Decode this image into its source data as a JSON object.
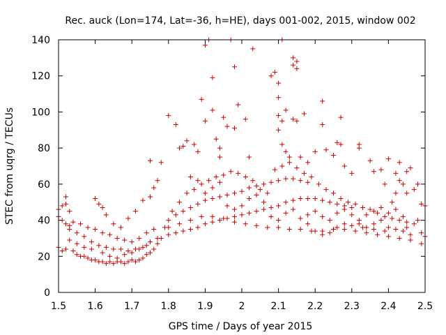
{
  "chart_data": {
    "type": "scatter",
    "title": "Rec. auck (Lon=174, Lat=-36, h=HE), days 001-002, 2015, window 002",
    "xlabel": "GPS time / Days of year 2015",
    "ylabel": "STEC from uqrg / TECUs",
    "xlim": [
      1.5,
      2.5
    ],
    "ylim": [
      0,
      140
    ],
    "xticks": [
      "1.5",
      "1.6",
      "1.7",
      "1.8",
      "1.9",
      "2",
      "2.1",
      "2.2",
      "2.3",
      "2.4",
      "2.5"
    ],
    "yticks": [
      "0",
      "20",
      "40",
      "60",
      "80",
      "100",
      "120",
      "140"
    ],
    "marker": "+",
    "marker_color": "#cc0000",
    "grid": false,
    "series": [
      {
        "name": "STEC",
        "points": [
          [
            1.5,
            46
          ],
          [
            1.51,
            48
          ],
          [
            1.52,
            49
          ],
          [
            1.52,
            53
          ],
          [
            1.53,
            45
          ],
          [
            1.5,
            25
          ],
          [
            1.51,
            23
          ],
          [
            1.52,
            24
          ],
          [
            1.53,
            29
          ],
          [
            1.53,
            37
          ],
          [
            1.54,
            23
          ],
          [
            1.55,
            21
          ],
          [
            1.56,
            20
          ],
          [
            1.57,
            20
          ],
          [
            1.58,
            19
          ],
          [
            1.59,
            18
          ],
          [
            1.6,
            18
          ],
          [
            1.61,
            17
          ],
          [
            1.62,
            17
          ],
          [
            1.63,
            16
          ],
          [
            1.64,
            17
          ],
          [
            1.65,
            16
          ],
          [
            1.66,
            17
          ],
          [
            1.67,
            17
          ],
          [
            1.68,
            16
          ],
          [
            1.69,
            17
          ],
          [
            1.7,
            18
          ],
          [
            1.71,
            17
          ],
          [
            1.72,
            18
          ],
          [
            1.73,
            19
          ],
          [
            1.74,
            21
          ],
          [
            1.75,
            22
          ],
          [
            1.76,
            24
          ],
          [
            1.77,
            27
          ],
          [
            1.78,
            30
          ],
          [
            1.53,
            35
          ],
          [
            1.55,
            33
          ],
          [
            1.57,
            31
          ],
          [
            1.59,
            28
          ],
          [
            1.61,
            26
          ],
          [
            1.63,
            25
          ],
          [
            1.65,
            24
          ],
          [
            1.67,
            24
          ],
          [
            1.69,
            23
          ],
          [
            1.71,
            24
          ],
          [
            1.73,
            25
          ],
          [
            1.75,
            28
          ],
          [
            1.77,
            30
          ],
          [
            1.54,
            39
          ],
          [
            1.56,
            38
          ],
          [
            1.58,
            36
          ],
          [
            1.6,
            35
          ],
          [
            1.62,
            33
          ],
          [
            1.64,
            32
          ],
          [
            1.66,
            30
          ],
          [
            1.68,
            29
          ],
          [
            1.7,
            28
          ],
          [
            1.72,
            30
          ],
          [
            1.74,
            33
          ],
          [
            1.76,
            35
          ],
          [
            1.6,
            52
          ],
          [
            1.61,
            49
          ],
          [
            1.62,
            47
          ],
          [
            1.63,
            43
          ],
          [
            1.65,
            38
          ],
          [
            1.67,
            36
          ],
          [
            1.69,
            41
          ],
          [
            1.71,
            45
          ],
          [
            1.73,
            51
          ],
          [
            1.75,
            53
          ],
          [
            1.76,
            58
          ],
          [
            1.77,
            62
          ],
          [
            1.75,
            73
          ],
          [
            1.78,
            72
          ],
          [
            1.8,
            32
          ],
          [
            1.82,
            33
          ],
          [
            1.84,
            34
          ],
          [
            1.86,
            35
          ],
          [
            1.88,
            36
          ],
          [
            1.9,
            38
          ],
          [
            1.92,
            39
          ],
          [
            1.94,
            40
          ],
          [
            1.96,
            41
          ],
          [
            1.98,
            42
          ],
          [
            2.0,
            43
          ],
          [
            2.02,
            44
          ],
          [
            2.04,
            45
          ],
          [
            2.06,
            46
          ],
          [
            2.08,
            47
          ],
          [
            2.1,
            48
          ],
          [
            2.12,
            50
          ],
          [
            2.14,
            51
          ],
          [
            2.16,
            52
          ],
          [
            2.18,
            52
          ],
          [
            2.2,
            52
          ],
          [
            2.22,
            51
          ],
          [
            2.24,
            50
          ],
          [
            2.26,
            49
          ],
          [
            2.28,
            48
          ],
          [
            2.3,
            47
          ],
          [
            1.8,
            40
          ],
          [
            1.82,
            43
          ],
          [
            1.84,
            45
          ],
          [
            1.86,
            47
          ],
          [
            1.88,
            49
          ],
          [
            1.9,
            51
          ],
          [
            1.92,
            52
          ],
          [
            1.94,
            53
          ],
          [
            1.96,
            54
          ],
          [
            1.98,
            55
          ],
          [
            2.0,
            56
          ],
          [
            2.02,
            58
          ],
          [
            2.04,
            59
          ],
          [
            2.06,
            60
          ],
          [
            2.08,
            61
          ],
          [
            2.1,
            62
          ],
          [
            2.12,
            63
          ],
          [
            2.14,
            63
          ],
          [
            2.16,
            62
          ],
          [
            2.18,
            61
          ],
          [
            1.8,
            36
          ],
          [
            1.83,
            38
          ],
          [
            1.86,
            40
          ],
          [
            1.89,
            42
          ],
          [
            1.92,
            42
          ],
          [
            1.95,
            41
          ],
          [
            1.98,
            39
          ],
          [
            2.01,
            38
          ],
          [
            2.04,
            37
          ],
          [
            2.07,
            36
          ],
          [
            2.1,
            36
          ],
          [
            2.13,
            35
          ],
          [
            2.16,
            35
          ],
          [
            2.19,
            34
          ],
          [
            2.22,
            34
          ],
          [
            2.25,
            35
          ],
          [
            2.28,
            35
          ],
          [
            2.31,
            34
          ],
          [
            2.34,
            33
          ],
          [
            2.37,
            32
          ],
          [
            2.4,
            31
          ],
          [
            2.43,
            30
          ],
          [
            2.46,
            29
          ],
          [
            2.49,
            27
          ],
          [
            2.3,
            37
          ],
          [
            2.33,
            36
          ],
          [
            2.36,
            35
          ],
          [
            2.39,
            34
          ],
          [
            2.42,
            35
          ],
          [
            2.45,
            36
          ],
          [
            2.48,
            40
          ],
          [
            2.5,
            48
          ],
          [
            2.49,
            49
          ],
          [
            2.47,
            57
          ],
          [
            2.48,
            60
          ],
          [
            2.46,
            69
          ],
          [
            2.45,
            67
          ],
          [
            2.43,
            62
          ],
          [
            2.42,
            55
          ],
          [
            2.41,
            50
          ],
          [
            2.38,
            47
          ],
          [
            2.36,
            45
          ],
          [
            2.34,
            43
          ],
          [
            2.32,
            40
          ],
          [
            2.28,
            38
          ],
          [
            2.26,
            36
          ],
          [
            2.24,
            33
          ],
          [
            2.22,
            32
          ],
          [
            2.2,
            34
          ],
          [
            2.18,
            38
          ],
          [
            1.8,
            98
          ],
          [
            1.82,
            93
          ],
          [
            1.84,
            81
          ],
          [
            1.83,
            80
          ],
          [
            1.85,
            84
          ],
          [
            1.87,
            82
          ],
          [
            1.88,
            78
          ],
          [
            1.89,
            107
          ],
          [
            1.9,
            137
          ],
          [
            1.91,
            140
          ],
          [
            1.9,
            95
          ],
          [
            1.92,
            119
          ],
          [
            1.92,
            101
          ],
          [
            1.93,
            85
          ],
          [
            1.94,
            80
          ],
          [
            1.94,
            75
          ],
          [
            1.95,
            97
          ],
          [
            1.96,
            92
          ],
          [
            1.97,
            140
          ],
          [
            1.98,
            91
          ],
          [
            1.98,
            125
          ],
          [
            1.99,
            104
          ],
          [
            2.01,
            96
          ],
          [
            2.03,
            135
          ],
          [
            2.02,
            75
          ],
          [
            2.08,
            120
          ],
          [
            2.09,
            122
          ],
          [
            2.1,
            116
          ],
          [
            2.1,
            108
          ],
          [
            2.11,
            140
          ],
          [
            2.1,
            98
          ],
          [
            2.11,
            95
          ],
          [
            2.1,
            90
          ],
          [
            2.12,
            101
          ],
          [
            2.14,
            130
          ],
          [
            2.14,
            126
          ],
          [
            2.15,
            128
          ],
          [
            2.15,
            124
          ],
          [
            2.14,
            96
          ],
          [
            2.15,
            95
          ],
          [
            2.17,
            99
          ],
          [
            2.11,
            82
          ],
          [
            2.12,
            78
          ],
          [
            2.13,
            75
          ],
          [
            2.16,
            75
          ],
          [
            2.18,
            72
          ],
          [
            2.2,
            78
          ],
          [
            2.22,
            106
          ],
          [
            2.22,
            93
          ],
          [
            2.23,
            79
          ],
          [
            2.25,
            76
          ],
          [
            2.26,
            83
          ],
          [
            2.27,
            82
          ],
          [
            2.27,
            97
          ],
          [
            2.28,
            70
          ],
          [
            2.3,
            66
          ],
          [
            2.32,
            82
          ],
          [
            2.32,
            80
          ],
          [
            2.35,
            73
          ],
          [
            2.36,
            67
          ],
          [
            2.38,
            68
          ],
          [
            2.39,
            60
          ],
          [
            2.4,
            74
          ],
          [
            2.42,
            66
          ],
          [
            2.43,
            72
          ],
          [
            2.44,
            60
          ],
          [
            2.45,
            55
          ],
          [
            1.5,
            42
          ],
          [
            1.51,
            40
          ],
          [
            1.52,
            38
          ],
          [
            1.55,
            27
          ],
          [
            1.57,
            25
          ],
          [
            1.59,
            24
          ],
          [
            1.62,
            22
          ],
          [
            1.64,
            20
          ],
          [
            1.66,
            19
          ],
          [
            1.68,
            21
          ],
          [
            1.7,
            22
          ],
          [
            1.72,
            24
          ],
          [
            1.74,
            26
          ],
          [
            1.79,
            36
          ],
          [
            1.81,
            45
          ],
          [
            1.83,
            50
          ],
          [
            1.85,
            55
          ],
          [
            1.87,
            57
          ],
          [
            1.89,
            60
          ],
          [
            1.91,
            62
          ],
          [
            1.93,
            64
          ],
          [
            1.95,
            65
          ],
          [
            1.97,
            67
          ],
          [
            1.99,
            66
          ],
          [
            2.01,
            64
          ],
          [
            2.03,
            62
          ],
          [
            2.05,
            57
          ],
          [
            2.07,
            55
          ],
          [
            2.09,
            68
          ],
          [
            2.11,
            70
          ],
          [
            2.13,
            72
          ],
          [
            2.15,
            69
          ],
          [
            2.17,
            66
          ],
          [
            2.19,
            64
          ],
          [
            2.21,
            60
          ],
          [
            2.23,
            57
          ],
          [
            2.25,
            55
          ],
          [
            2.27,
            52
          ],
          [
            2.29,
            50
          ],
          [
            2.31,
            49
          ],
          [
            2.33,
            47
          ],
          [
            2.35,
            46
          ],
          [
            2.37,
            44
          ],
          [
            2.39,
            42
          ],
          [
            2.41,
            41
          ],
          [
            2.43,
            40
          ],
          [
            2.45,
            39
          ],
          [
            2.47,
            38
          ],
          [
            2.49,
            33
          ],
          [
            2.5,
            31
          ],
          [
            2.46,
            32
          ],
          [
            2.44,
            34
          ],
          [
            2.4,
            36
          ],
          [
            1.86,
            64
          ],
          [
            1.88,
            62
          ],
          [
            1.9,
            55
          ],
          [
            1.92,
            58
          ],
          [
            1.94,
            61
          ],
          [
            1.96,
            48
          ],
          [
            1.98,
            46
          ],
          [
            2.0,
            48
          ],
          [
            2.02,
            52
          ],
          [
            2.04,
            54
          ],
          [
            2.06,
            50
          ],
          [
            2.08,
            42
          ],
          [
            2.1,
            40
          ],
          [
            2.12,
            44
          ],
          [
            2.14,
            46
          ],
          [
            2.16,
            41
          ],
          [
            2.18,
            43
          ],
          [
            2.2,
            45
          ],
          [
            2.22,
            42
          ],
          [
            2.24,
            40
          ],
          [
            2.26,
            44
          ],
          [
            2.28,
            46
          ],
          [
            2.3,
            43
          ],
          [
            2.32,
            38
          ],
          [
            2.34,
            36
          ],
          [
            2.36,
            38
          ],
          [
            2.38,
            40
          ],
          [
            2.4,
            44
          ],
          [
            2.42,
            46
          ],
          [
            2.44,
            42
          ]
        ]
      }
    ]
  }
}
